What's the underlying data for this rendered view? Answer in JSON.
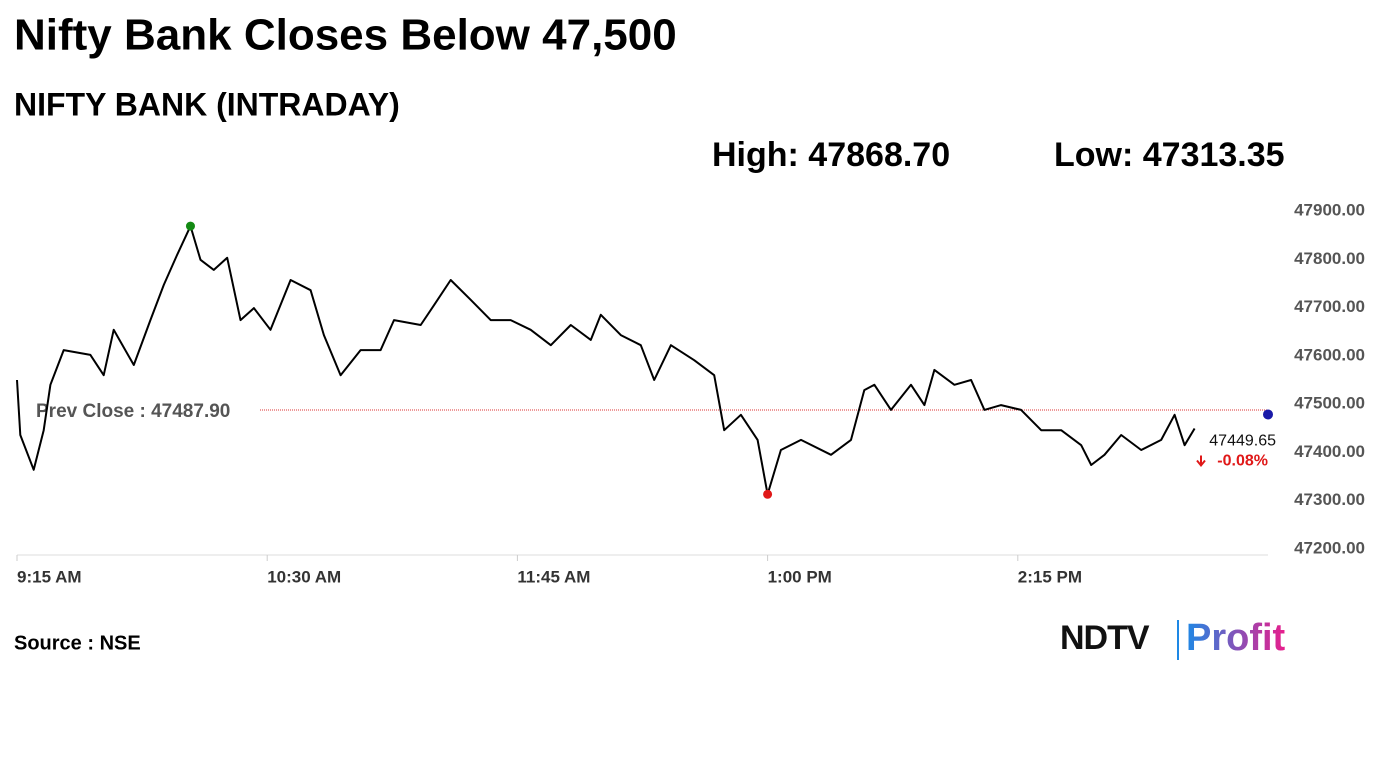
{
  "chart_data": {
    "type": "line",
    "title": "Nifty Bank Closes Below 47,500",
    "subtitle": "NIFTY BANK (INTRADAY)",
    "high_label": "High: 47868.70",
    "low_label": "Low: 47313.35",
    "source": "Source : NSE",
    "logo": [
      "NDTV",
      "Profit"
    ],
    "change_label": "-0.08%",
    "prev_close": {
      "value": 47487.9,
      "label": "Prev Close : 47487.90"
    },
    "high_index": 13,
    "low_index": 47,
    "xlim": [
      555,
      930
    ],
    "xticks": [
      {
        "value": 555,
        "label": "9:15 AM"
      },
      {
        "value": 630,
        "label": "10:30 AM"
      },
      {
        "value": 705,
        "label": "11:45 AM"
      },
      {
        "value": 780,
        "label": "1:00 PM"
      },
      {
        "value": 855,
        "label": "2:15 PM"
      }
    ],
    "ylim": [
      47200,
      47900
    ],
    "yticks": [
      {
        "value": 47200,
        "label": "47200.00"
      },
      {
        "value": 47300,
        "label": "47300.00"
      },
      {
        "value": 47400,
        "label": "47400.00"
      },
      {
        "value": 47500,
        "label": "47500.00"
      },
      {
        "value": 47600,
        "label": "47600.00"
      },
      {
        "value": 47700,
        "label": "47700.00"
      },
      {
        "value": 47800,
        "label": "47800.00"
      },
      {
        "value": 47900,
        "label": "47900.00"
      }
    ],
    "x": [
      555,
      556,
      560,
      563,
      565,
      569,
      577,
      581,
      584,
      590,
      595,
      599,
      603,
      607,
      610,
      614,
      618,
      622,
      626,
      631,
      637,
      643,
      647,
      652,
      658,
      664,
      668,
      676,
      680,
      685,
      691,
      697,
      703,
      709,
      715,
      721,
      727,
      730,
      736,
      742,
      746,
      751,
      758,
      764,
      767,
      772,
      777,
      780,
      784,
      790,
      799,
      805,
      809,
      812,
      817,
      823,
      827,
      830,
      836,
      841,
      845,
      850,
      856,
      862,
      868,
      874,
      877,
      881,
      886,
      892,
      898,
      902,
      905,
      908
    ],
    "series": [
      {
        "color": "#000000",
        "values": [
          47550,
          47436,
          47364,
          47446,
          47540,
          47612,
          47602,
          47560,
          47654,
          47581,
          47674,
          47747,
          47809,
          47868.7,
          47799,
          47778,
          47803,
          47674,
          47699,
          47654,
          47757,
          47736,
          47643,
          47560,
          47612,
          47612,
          47674,
          47664,
          47705,
          47757,
          47716,
          47674,
          47674,
          47654,
          47622,
          47664,
          47633,
          47685,
          47643,
          47622,
          47550,
          47622,
          47591,
          47560,
          47446,
          47478,
          47426,
          47313.35,
          47405,
          47426,
          47395,
          47426,
          47529,
          47540,
          47488,
          47540,
          47498,
          47571,
          47540,
          47550,
          47488,
          47498,
          47488,
          47446,
          47446,
          47415,
          47374,
          47395,
          47436,
          47405,
          47426,
          47478,
          47415,
          47449.65
        ]
      }
    ]
  }
}
